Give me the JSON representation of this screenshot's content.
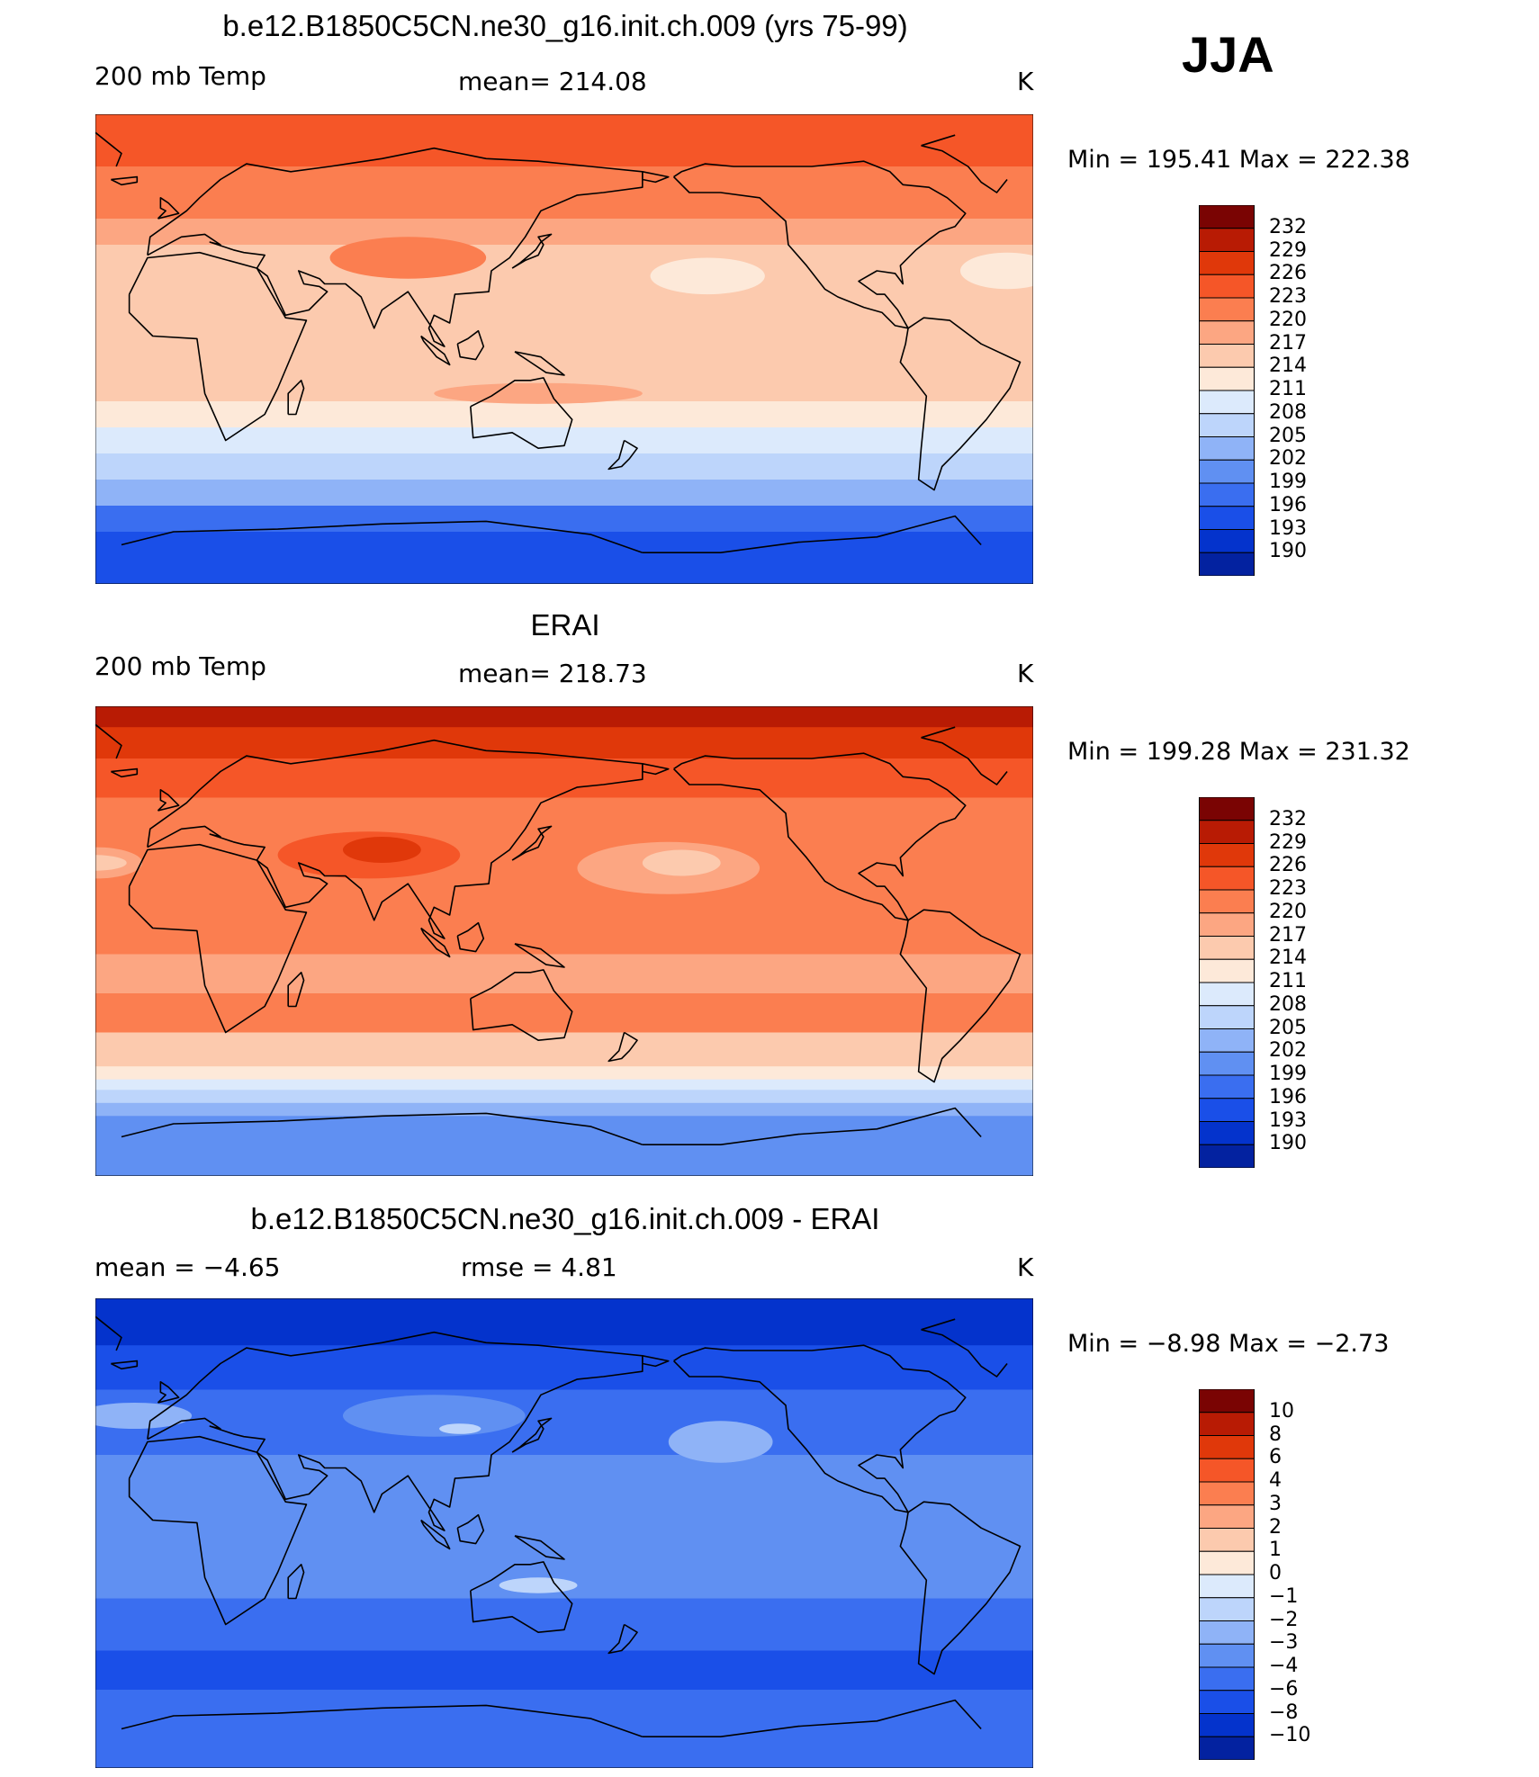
{
  "season": "JJA",
  "colors": {
    "temp": [
      "#000080",
      "#0322a0",
      "#0433cc",
      "#1a4fe8",
      "#3a6ef0",
      "#6090f2",
      "#8fb3f7",
      "#bdd5fb",
      "#dceafc",
      "#fde9d9",
      "#fccaae",
      "#fca682",
      "#fb7e50",
      "#f55628",
      "#e0380a",
      "#b81b04",
      "#7a0403"
    ],
    "diff": [
      "#000080",
      "#0322a0",
      "#0433cc",
      "#1a4fe8",
      "#3a6ef0",
      "#6090f2",
      "#8fb3f7",
      "#bdd5fb",
      "#dceafc",
      "#fde9d9",
      "#fccaae",
      "#fca682",
      "#fb7e50",
      "#f55628",
      "#e0380a",
      "#b81b04",
      "#7a0403"
    ]
  },
  "panels": [
    {
      "title": "b.e12.B1850C5CN.ne30_g16.init.ch.009 (yrs 75-99)",
      "left_label": "200 mb Temp",
      "center_label": "mean=  214.08",
      "units": "K",
      "minmax": "Min  =  195.41  Max  =  222.38",
      "ticks": [
        "232",
        "229",
        "226",
        "223",
        "220",
        "217",
        "214",
        "211",
        "208",
        "205",
        "202",
        "199",
        "196",
        "193",
        "190"
      ],
      "bands": [
        {
          "lat_top": 90,
          "lat_bot": 70,
          "level": 13
        },
        {
          "lat_top": 70,
          "lat_bot": 50,
          "level": 12
        },
        {
          "lat_top": 50,
          "lat_bot": 40,
          "level": 11
        },
        {
          "lat_top": 40,
          "lat_bot": -20,
          "level": 10
        },
        {
          "lat_top": -20,
          "lat_bot": -30,
          "level": 9
        },
        {
          "lat_top": -30,
          "lat_bot": -40,
          "level": 8
        },
        {
          "lat_top": -40,
          "lat_bot": -50,
          "level": 7
        },
        {
          "lat_top": -50,
          "lat_bot": -60,
          "level": 6
        },
        {
          "lat_top": -60,
          "lat_bot": -70,
          "level": 4
        },
        {
          "lat_top": -70,
          "lat_bot": -90,
          "level": 3
        }
      ],
      "blobs": [
        {
          "lon": 90,
          "lat": 35,
          "rlon": 30,
          "rlat": 8,
          "level": 12
        },
        {
          "lon": -155,
          "lat": 28,
          "rlon": 22,
          "rlat": 7,
          "level": 9
        },
        {
          "lon": -40,
          "lat": 30,
          "rlon": 18,
          "rlat": 7,
          "level": 9
        },
        {
          "lon": 140,
          "lat": -17,
          "rlon": 40,
          "rlat": 4,
          "level": 11
        }
      ]
    },
    {
      "title": "ERAI",
      "left_label": "200 mb Temp",
      "center_label": "mean=  218.73",
      "units": "K",
      "minmax": "Min  =  199.28  Max  =  231.32",
      "ticks": [
        "232",
        "229",
        "226",
        "223",
        "220",
        "217",
        "214",
        "211",
        "208",
        "205",
        "202",
        "199",
        "196",
        "193",
        "190"
      ],
      "bands": [
        {
          "lat_top": 90,
          "lat_bot": 82,
          "level": 15
        },
        {
          "lat_top": 82,
          "lat_bot": 70,
          "level": 14
        },
        {
          "lat_top": 70,
          "lat_bot": 55,
          "level": 13
        },
        {
          "lat_top": 55,
          "lat_bot": -5,
          "level": 12
        },
        {
          "lat_top": -5,
          "lat_bot": -20,
          "level": 11
        },
        {
          "lat_top": -20,
          "lat_bot": -35,
          "level": 12
        },
        {
          "lat_top": -35,
          "lat_bot": -48,
          "level": 10
        },
        {
          "lat_top": -48,
          "lat_bot": -53,
          "level": 9
        },
        {
          "lat_top": -53,
          "lat_bot": -57,
          "level": 8
        },
        {
          "lat_top": -57,
          "lat_bot": -62,
          "level": 7
        },
        {
          "lat_top": -62,
          "lat_bot": -67,
          "level": 6
        },
        {
          "lat_top": -67,
          "lat_bot": -90,
          "level": 5
        }
      ],
      "blobs": [
        {
          "lon": 75,
          "lat": 33,
          "rlon": 35,
          "rlat": 9,
          "level": 13
        },
        {
          "lon": 80,
          "lat": 35,
          "rlon": 15,
          "rlat": 5,
          "level": 14
        },
        {
          "lon": -170,
          "lat": 28,
          "rlon": 35,
          "rlat": 10,
          "level": 11
        },
        {
          "lon": -165,
          "lat": 30,
          "rlon": 15,
          "rlat": 5,
          "level": 10
        },
        {
          "lon": -30,
          "lat": 30,
          "rlon": 18,
          "rlat": 6,
          "level": 11
        },
        {
          "lon": -30,
          "lat": 30,
          "rlon": 12,
          "rlat": 3,
          "level": 10
        }
      ]
    },
    {
      "title": "b.e12.B1850C5CN.ne30_g16.init.ch.009 - ERAI",
      "left_label": "mean  =    -4.65",
      "center_label": "rmse  =     4.81",
      "units": "K",
      "minmax": "Min  =    -8.98  Max  =    -2.73",
      "ticks": [
        "10",
        "8",
        "6",
        "4",
        "3",
        "2",
        "1",
        "0",
        "-1",
        "-2",
        "-3",
        "-4",
        "-6",
        "-8",
        "-10"
      ],
      "bands": [
        {
          "lat_top": 90,
          "lat_bot": 72,
          "level": 2
        },
        {
          "lat_top": 72,
          "lat_bot": 55,
          "level": 3
        },
        {
          "lat_top": 55,
          "lat_bot": 30,
          "level": 4
        },
        {
          "lat_top": 30,
          "lat_bot": -25,
          "level": 5
        },
        {
          "lat_top": -25,
          "lat_bot": -45,
          "level": 4
        },
        {
          "lat_top": -45,
          "lat_bot": -60,
          "level": 3
        },
        {
          "lat_top": -60,
          "lat_bot": -90,
          "level": 4
        }
      ],
      "blobs": [
        {
          "lon": 100,
          "lat": 45,
          "rlon": 35,
          "rlat": 8,
          "level": 5
        },
        {
          "lon": 110,
          "lat": 40,
          "rlon": 8,
          "rlat": 2,
          "level": 7
        },
        {
          "lon": -150,
          "lat": 35,
          "rlon": 20,
          "rlat": 8,
          "level": 6
        },
        {
          "lon": -15,
          "lat": 45,
          "rlon": 22,
          "rlat": 5,
          "level": 6
        },
        {
          "lon": 140,
          "lat": -20,
          "rlon": 15,
          "rlat": 3,
          "level": 7
        }
      ]
    }
  ]
}
